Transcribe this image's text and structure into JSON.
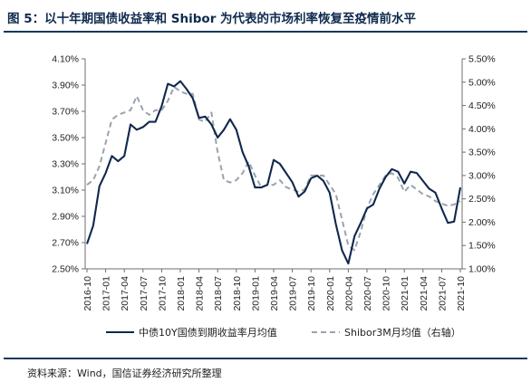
{
  "title": "图 5：以十年期国债收益率和 Shibor 为代表的市场利率恢复至疫情前水平",
  "source": "资料来源：Wind，国信证券经济研究所整理",
  "colors": {
    "series1": "#10284d",
    "series2": "#9aa3ad",
    "axis": "#6f6f6f",
    "rule": "#16365f"
  },
  "chart_data": {
    "type": "line",
    "left_axis": {
      "min": 2.5,
      "max": 4.1,
      "ticks": [
        "2.50%",
        "2.70%",
        "2.90%",
        "3.10%",
        "3.30%",
        "3.50%",
        "3.70%",
        "3.90%",
        "4.10%"
      ]
    },
    "right_axis": {
      "min": 1.0,
      "max": 5.5,
      "ticks": [
        "1.00%",
        "1.50%",
        "2.00%",
        "2.50%",
        "3.00%",
        "3.50%",
        "4.00%",
        "4.50%",
        "5.00%",
        "5.50%"
      ]
    },
    "x_labels": [
      "2016-10",
      "2017-01",
      "2017-04",
      "2017-07",
      "2017-10",
      "2018-01",
      "2018-04",
      "2018-07",
      "2018-10",
      "2019-01",
      "2019-04",
      "2019-07",
      "2019-10",
      "2020-01",
      "2020-04",
      "2020-07",
      "2020-10",
      "2021-01",
      "2021-04",
      "2021-07",
      "2021-10"
    ],
    "x": [
      "2016-10",
      "2016-11",
      "2016-12",
      "2017-01",
      "2017-02",
      "2017-03",
      "2017-04",
      "2017-05",
      "2017-06",
      "2017-07",
      "2017-08",
      "2017-09",
      "2017-10",
      "2017-11",
      "2017-12",
      "2018-01",
      "2018-02",
      "2018-03",
      "2018-04",
      "2018-05",
      "2018-06",
      "2018-07",
      "2018-08",
      "2018-09",
      "2018-10",
      "2018-11",
      "2018-12",
      "2019-01",
      "2019-02",
      "2019-03",
      "2019-04",
      "2019-05",
      "2019-06",
      "2019-07",
      "2019-08",
      "2019-09",
      "2019-10",
      "2019-11",
      "2019-12",
      "2020-01",
      "2020-02",
      "2020-03",
      "2020-04",
      "2020-05",
      "2020-06",
      "2020-07",
      "2020-08",
      "2020-09",
      "2020-10",
      "2020-11",
      "2020-12",
      "2021-01",
      "2021-02",
      "2021-03",
      "2021-04",
      "2021-05",
      "2021-06",
      "2021-07",
      "2021-08",
      "2021-09",
      "2021-10"
    ],
    "series": [
      {
        "name": "中债10Y国债到期收益率月均值",
        "axis": "left",
        "values": [
          2.69,
          2.83,
          3.13,
          3.23,
          3.36,
          3.32,
          3.36,
          3.6,
          3.56,
          3.58,
          3.62,
          3.62,
          3.74,
          3.91,
          3.89,
          3.93,
          3.87,
          3.8,
          3.65,
          3.66,
          3.6,
          3.5,
          3.56,
          3.64,
          3.56,
          3.39,
          3.28,
          3.12,
          3.12,
          3.14,
          3.33,
          3.3,
          3.23,
          3.16,
          3.05,
          3.09,
          3.19,
          3.21,
          3.17,
          3.08,
          2.84,
          2.64,
          2.54,
          2.75,
          2.85,
          2.96,
          2.99,
          3.11,
          3.2,
          3.26,
          3.24,
          3.15,
          3.24,
          3.23,
          3.17,
          3.11,
          3.08,
          2.96,
          2.85,
          2.86,
          3.12
        ]
      },
      {
        "name": "Shibor3M月均值（右轴）",
        "axis": "right",
        "values": [
          2.8,
          2.9,
          3.2,
          3.7,
          4.2,
          4.3,
          4.35,
          4.4,
          4.7,
          4.4,
          4.3,
          4.4,
          4.4,
          4.6,
          4.9,
          4.8,
          4.75,
          4.75,
          4.2,
          4.15,
          4.35,
          3.5,
          2.9,
          2.85,
          2.9,
          3.05,
          3.3,
          3.0,
          2.75,
          2.8,
          2.8,
          2.9,
          2.75,
          2.7,
          2.65,
          2.7,
          3.0,
          3.0,
          3.0,
          2.8,
          2.6,
          2.05,
          1.5,
          1.4,
          1.8,
          2.3,
          2.6,
          2.8,
          3.0,
          3.05,
          2.95,
          2.65,
          2.8,
          2.7,
          2.6,
          2.55,
          2.45,
          2.4,
          2.35,
          2.38,
          2.45
        ]
      }
    ],
    "legend_position": "bottom",
    "grid": false
  }
}
